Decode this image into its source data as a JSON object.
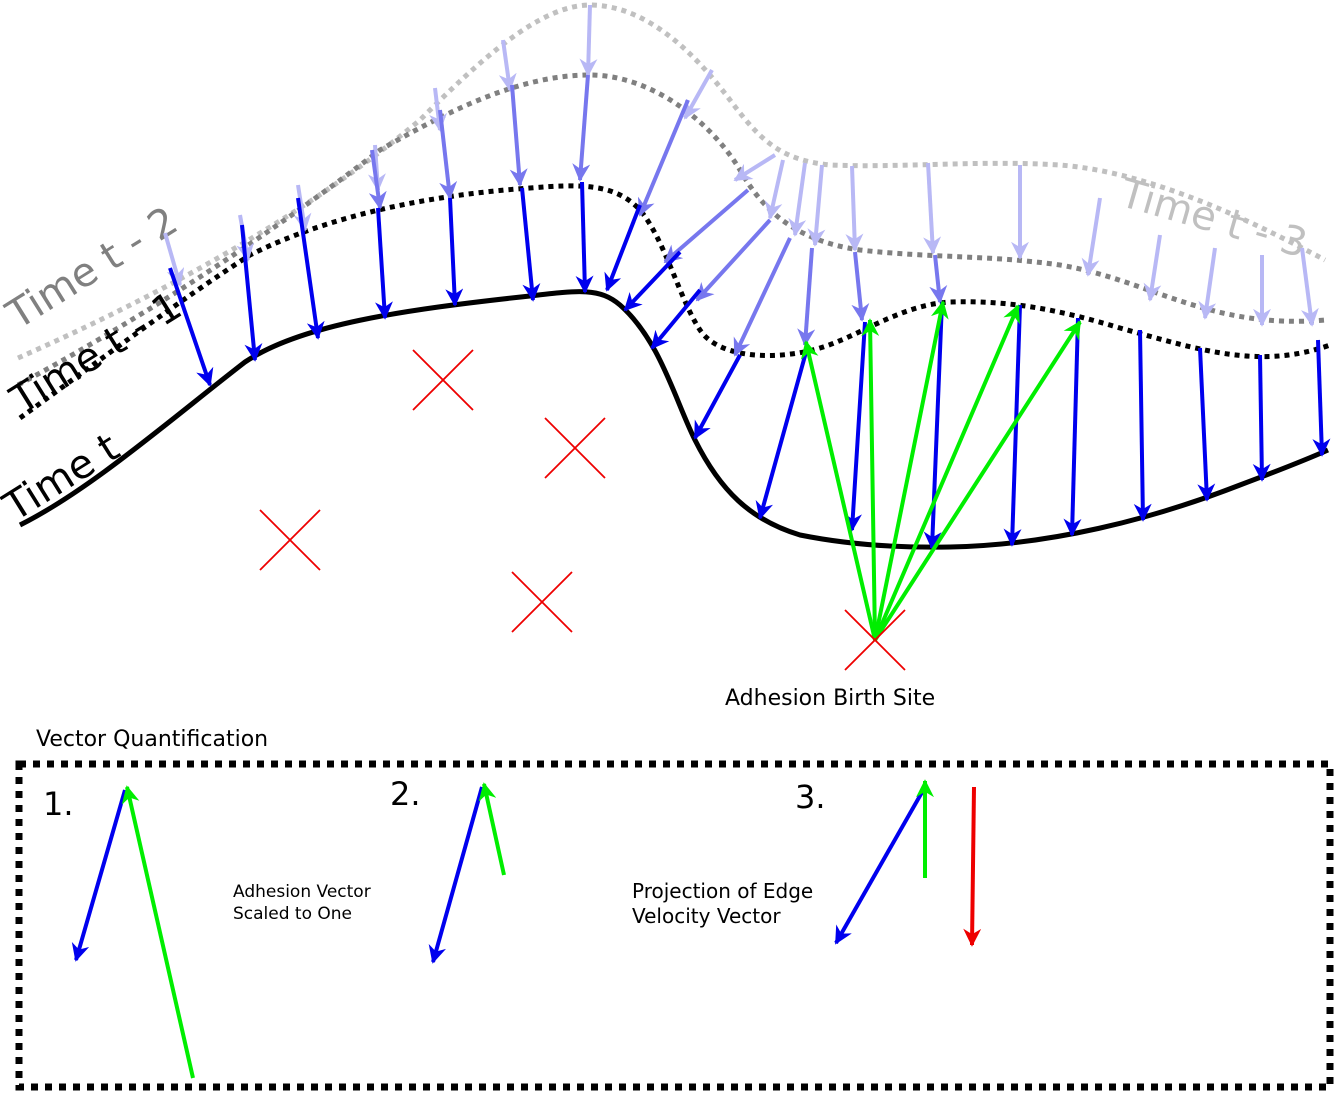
{
  "curves": {
    "t": {
      "label": "Time t",
      "color": "#000000"
    },
    "t_minus_1": {
      "label": "Time t - 1",
      "color": "#000000"
    },
    "t_minus_2": {
      "label": "Time t - 2",
      "color": "#808080"
    },
    "t_minus_3": {
      "label": "Time t - 3",
      "color": "#c0c0c0"
    }
  },
  "birth_site": {
    "label": "Adhesion Birth Site"
  },
  "panel": {
    "title": "Vector Quantification",
    "steps": [
      {
        "number": "1."
      },
      {
        "number": "2.",
        "caption_line1": "Adhesion Vector",
        "caption_line2": "Scaled to One"
      },
      {
        "number": "3.",
        "caption_line1": "Projection of Edge",
        "caption_line2": "Velocity Vector"
      }
    ]
  },
  "colors": {
    "edge_velocity_current": "#0000ee",
    "edge_velocity_prev": "#7777ee",
    "edge_velocity_oldest": "#b8b8f5",
    "adhesion_vector": "#00ee00",
    "projection": "#ee0000",
    "adhesion_site_marker": "#ee0000"
  },
  "icons": {
    "adhesion_site": "x-cross-icon",
    "vector": "arrow-icon"
  }
}
